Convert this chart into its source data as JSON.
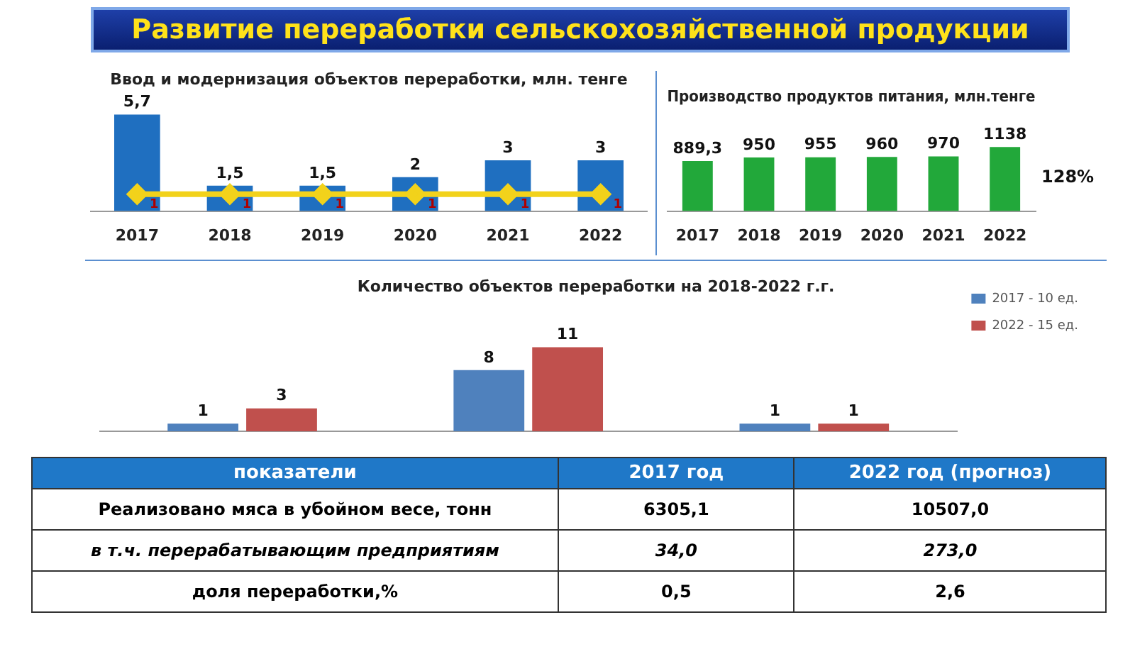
{
  "chart_data": [
    {
      "type": "bar",
      "title": "Развитие переработки сельскохозяйственной продукции",
      "subtitle": "Ввод и модернизация объектов переработки, млн. тенге",
      "categories": [
        "2017",
        "2018",
        "2019",
        "2020",
        "2021",
        "2022"
      ],
      "series": [
        {
          "type": "bar",
          "color": "#1f6fc0",
          "values": [
            5.7,
            1.5,
            1.5,
            2,
            3,
            3
          ],
          "value_labels": [
            "5,7",
            "1,5",
            "1,5",
            "2",
            "3",
            "3"
          ]
        },
        {
          "type": "line",
          "color": "#f2d21b",
          "marker": "diamond",
          "values": [
            1,
            1,
            1,
            1,
            1,
            1
          ],
          "value_labels": [
            "1",
            "1",
            "1",
            "1",
            "1",
            "1"
          ]
        }
      ],
      "tick_labels": "x"
    },
    {
      "type": "bar",
      "title": "Производство продуктов питания, млн.тенге",
      "categories": [
        "2017",
        "2018",
        "2019",
        "2020",
        "2021",
        "2022"
      ],
      "series": [
        {
          "color": "#22a83a",
          "values": [
            889.3,
            950,
            955,
            960,
            970,
            1138
          ],
          "value_labels": [
            "889,3",
            "950",
            "955",
            "960",
            "970",
            "1138"
          ]
        }
      ],
      "annotations": [
        "128%"
      ],
      "tick_labels": "x"
    },
    {
      "type": "bar",
      "title": "Количество объектов переработки на 2018-2022 г.г.",
      "categories": [
        null,
        null,
        null
      ],
      "series": [
        {
          "name": "2017 - 10 ед.",
          "color": "#4f81bd",
          "values": [
            1,
            8,
            1
          ]
        },
        {
          "name": "2022 - 15 ед.",
          "color": "#c0504d",
          "values": [
            3,
            11,
            1
          ]
        }
      ],
      "data_labels": true,
      "legend": "top right",
      "tick_labels": false
    },
    {
      "type": "other",
      "categories": [
        "показатели",
        "2017 год",
        "2022 год (прогноз)"
      ],
      "y_categories": [
        "Реализовано мяса в убойном весе, тонн",
        "в т.ч. перерабатывающим предприятиям",
        "доля переработки,%"
      ],
      "cell_labels": [
        [
          "6305,1",
          "10507,0"
        ],
        [
          "34,0",
          "273,0"
        ],
        [
          "0,5",
          "2,6"
        ]
      ]
    }
  ]
}
